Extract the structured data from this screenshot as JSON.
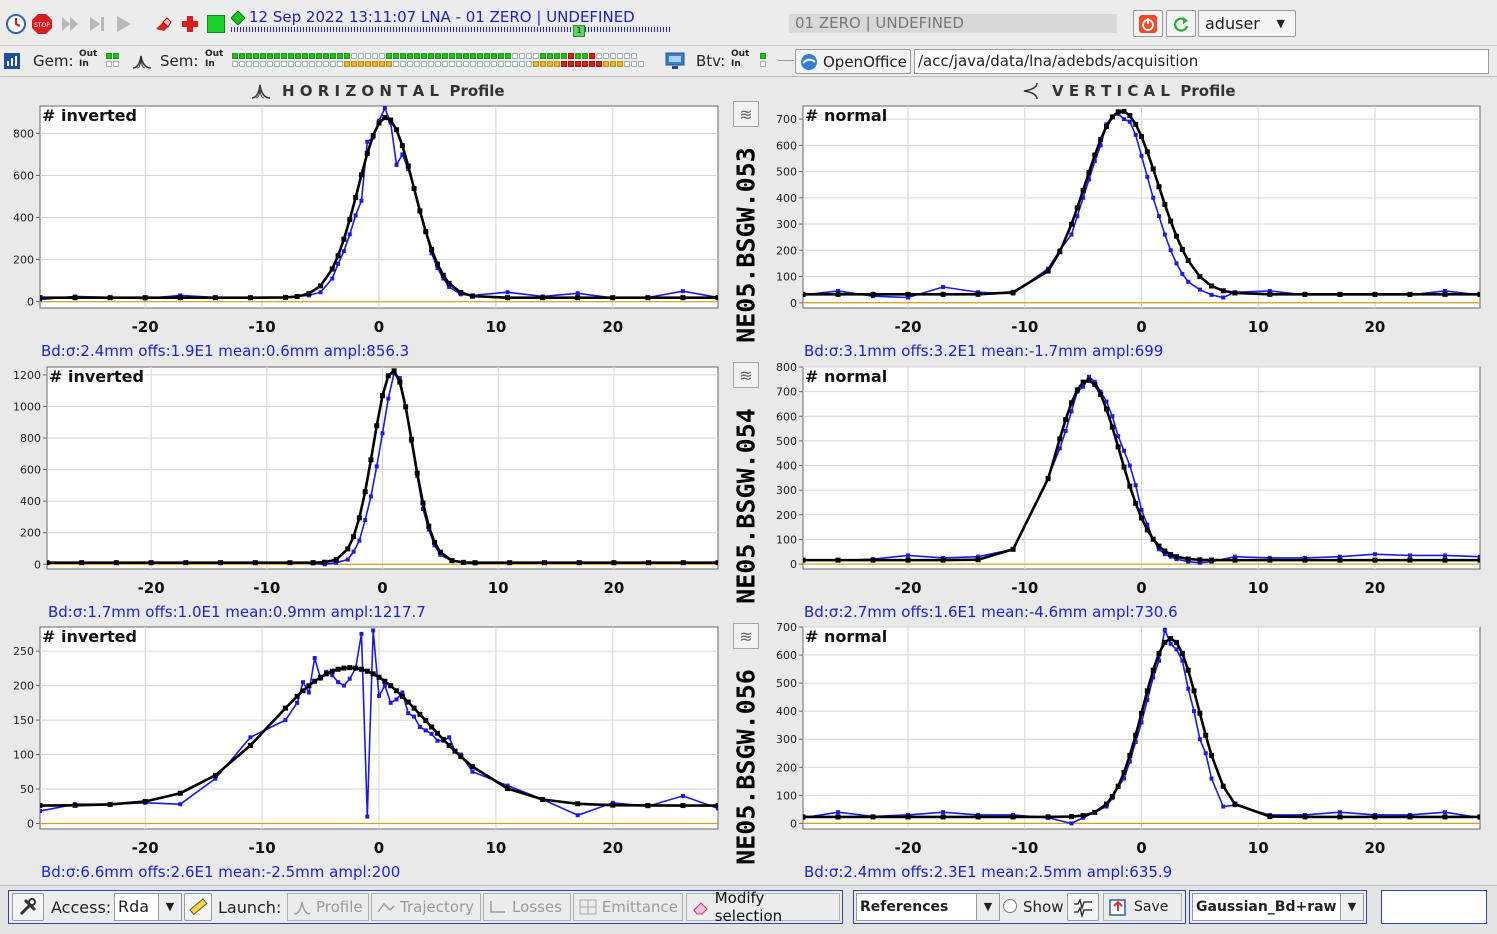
{
  "toolbar": {
    "timestamp": "12 Sep 2022  13:11:07  LNA - 01 ZERO | UNDEFINED",
    "user_cycle": "01 ZERO | UNDEFINED",
    "user": "aduser",
    "stop_label": "STOP",
    "marker": "1"
  },
  "status_bar": {
    "gem_label": "Gem:",
    "sem_label": "Sem:",
    "btv_label": "Btv:",
    "out": "Out",
    "in": "In",
    "openoffice": "OpenOffice",
    "path": "/acc/java/data/lna/adebds/acquisition",
    "gem_leds": {
      "out": [
        "g",
        "g"
      ],
      "in": [
        "w",
        "w"
      ]
    },
    "btv_leds": {
      "out": [
        "g"
      ],
      "in": [
        "w"
      ]
    },
    "sem_leds_out": "gggggggggggggggggwwwwwggggggggggggggggggwwwwggggrggrwwwwww",
    "sem_leds_in": "wwwwwwwwwwwwwwwwyyyyyyywwwwwwwwwwwwwwwwwwwwyyyyrrrrrryyywww"
  },
  "headers": {
    "horizontal": "H O R I Z O N T A L  Profile",
    "vertical": "V E R T I C A L  Profile"
  },
  "monitors": [
    {
      "name": "NE05.BSGW.053"
    },
    {
      "name": "NE05.BSGW.054"
    },
    {
      "name": "NE05.BSGW.056"
    }
  ],
  "bottom": {
    "access_label": "Access:",
    "access_value": "Rda",
    "launch_label": "Launch:",
    "profile": "Profile",
    "trajectory": "Trajectory",
    "losses": "Losses",
    "emittance": "Emittance",
    "modify": "Modify selection",
    "references": "References",
    "show": "Show",
    "save": "Save",
    "fit": "Gaussian_Bd+raw",
    "text_value": ""
  },
  "colors": {
    "raw": "#1a1ae6",
    "fit": "#000000",
    "baseline": "#d4a017",
    "label": "#1b24d6"
  },
  "chart_data": [
    {
      "type": "line",
      "plane": "horizontal",
      "monitor": "NE05.BSGW.053",
      "annotation": "# inverted",
      "xlim": [
        -29,
        29
      ],
      "ylim": [
        -30,
        930
      ],
      "xticks": [
        -20,
        -10,
        0,
        10,
        20
      ],
      "yticks": [
        0,
        200,
        400,
        600,
        800
      ],
      "stats": "Bd:σ:2.4mm offs:1.9E1 mean:0.6mm ampl:856.3",
      "sigma": 2.4,
      "offset": 19,
      "mean": 0.6,
      "ampl": 856.3,
      "series": [
        {
          "name": "raw",
          "x": [
            -29,
            -26,
            -23,
            -20,
            -17,
            -14,
            -11,
            -8,
            -7,
            -6,
            -5,
            -4,
            -3.5,
            -3,
            -2.5,
            -2,
            -1.5,
            -1,
            -0.5,
            0,
            0.5,
            1,
            1.5,
            2,
            2.5,
            3,
            3.5,
            4,
            4.5,
            5,
            5.5,
            6,
            7,
            8,
            11,
            14,
            17,
            20,
            23,
            26,
            29
          ],
          "y": [
            10,
            25,
            20,
            15,
            30,
            20,
            18,
            20,
            25,
            30,
            45,
            110,
            180,
            240,
            320,
            410,
            480,
            760,
            780,
            860,
            920,
            850,
            650,
            700,
            630,
            540,
            430,
            330,
            230,
            160,
            110,
            70,
            35,
            30,
            45,
            25,
            40,
            18,
            20,
            50,
            20
          ]
        }
      ]
    },
    {
      "type": "line",
      "plane": "vertical",
      "monitor": "NE05.BSGW.053",
      "annotation": "# normal",
      "xlim": [
        -29,
        29
      ],
      "ylim": [
        -20,
        750
      ],
      "xticks": [
        -20,
        -10,
        0,
        10,
        20
      ],
      "yticks": [
        0,
        100,
        200,
        300,
        400,
        500,
        600,
        700
      ],
      "stats": "Bd:σ:3.1mm offs:3.2E1 mean:-1.7mm ampl:699",
      "sigma": 3.1,
      "offset": 32,
      "mean": -1.7,
      "ampl": 699,
      "series": [
        {
          "name": "raw",
          "x": [
            -29,
            -26,
            -23,
            -20,
            -17,
            -14,
            -11,
            -8,
            -7,
            -6,
            -5.5,
            -5,
            -4.5,
            -4,
            -3.5,
            -3,
            -2.5,
            -2,
            -1.5,
            -1,
            -0.5,
            0,
            0.5,
            1,
            1.5,
            2,
            2.5,
            3,
            3.5,
            4,
            5,
            6,
            7,
            8,
            11,
            14,
            17,
            20,
            23,
            26,
            29
          ],
          "y": [
            30,
            45,
            25,
            20,
            60,
            40,
            35,
            130,
            200,
            260,
            330,
            400,
            470,
            540,
            600,
            680,
            710,
            720,
            700,
            690,
            640,
            560,
            480,
            400,
            330,
            260,
            200,
            150,
            110,
            80,
            50,
            30,
            20,
            40,
            45,
            30,
            30,
            30,
            30,
            45,
            30
          ]
        }
      ]
    },
    {
      "type": "line",
      "plane": "horizontal",
      "monitor": "NE05.BSGW.054",
      "annotation": "# inverted",
      "xlim": [
        -29,
        29
      ],
      "ylim": [
        -30,
        1250
      ],
      "xticks": [
        -20,
        -10,
        0,
        10,
        20
      ],
      "yticks": [
        0,
        200,
        400,
        600,
        800,
        1000,
        1200
      ],
      "stats": "Bd:σ:1.7mm offs:1.0E1 mean:0.9mm ampl:1217.7",
      "sigma": 1.7,
      "offset": 10,
      "mean": 0.9,
      "ampl": 1217.7,
      "series": [
        {
          "name": "raw",
          "x": [
            -29,
            -26,
            -23,
            -20,
            -17,
            -14,
            -11,
            -8,
            -6,
            -5,
            -4,
            -3,
            -2.5,
            -2,
            -1.5,
            -1,
            -0.5,
            0,
            0.5,
            1,
            1.5,
            2,
            2.5,
            3,
            3.5,
            4,
            4.5,
            5,
            6,
            7,
            8,
            11,
            14,
            17,
            20,
            23,
            26,
            29
          ],
          "y": [
            10,
            8,
            8,
            10,
            10,
            10,
            12,
            10,
            5,
            0,
            10,
            30,
            80,
            150,
            280,
            430,
            620,
            830,
            1050,
            1210,
            1180,
            1000,
            780,
            560,
            350,
            220,
            120,
            60,
            20,
            10,
            5,
            10,
            8,
            8,
            10,
            10,
            10,
            8
          ]
        }
      ]
    },
    {
      "type": "line",
      "plane": "vertical",
      "monitor": "NE05.BSGW.054",
      "annotation": "# normal",
      "xlim": [
        -29,
        29
      ],
      "ylim": [
        -20,
        800
      ],
      "xticks": [
        -20,
        -10,
        0,
        10,
        20
      ],
      "yticks": [
        0,
        100,
        200,
        300,
        400,
        500,
        600,
        700,
        800
      ],
      "stats": "Bd:σ:2.7mm offs:1.6E1 mean:-4.6mm ampl:730.6",
      "sigma": 2.7,
      "offset": 16,
      "mean": -4.6,
      "ampl": 730.6,
      "series": [
        {
          "name": "raw",
          "x": [
            -29,
            -26,
            -23,
            -20,
            -17,
            -14,
            -11,
            -8,
            -7,
            -6.5,
            -6,
            -5.5,
            -5,
            -4.5,
            -4,
            -3.5,
            -3,
            -2.5,
            -2,
            -1.5,
            -1,
            -0.5,
            0,
            0.5,
            1,
            1.5,
            2,
            2.5,
            3,
            4,
            5,
            6,
            8,
            11,
            14,
            17,
            20,
            23,
            26,
            29
          ],
          "y": [
            15,
            15,
            20,
            35,
            25,
            30,
            60,
            350,
            470,
            540,
            620,
            700,
            720,
            760,
            740,
            700,
            660,
            600,
            520,
            460,
            400,
            320,
            220,
            160,
            100,
            60,
            40,
            30,
            20,
            10,
            5,
            10,
            30,
            25,
            25,
            30,
            40,
            35,
            35,
            30
          ]
        }
      ]
    },
    {
      "type": "line",
      "plane": "horizontal",
      "monitor": "NE05.BSGW.056",
      "annotation": "# inverted",
      "xlim": [
        -29,
        29
      ],
      "ylim": [
        -8,
        285
      ],
      "xticks": [
        -20,
        -10,
        0,
        10,
        20
      ],
      "yticks": [
        0,
        50,
        100,
        150,
        200,
        250
      ],
      "stats": "Bd:σ:6.6mm offs:2.6E1 mean:-2.5mm ampl:200",
      "sigma": 6.6,
      "offset": 26,
      "mean": -2.5,
      "ampl": 200,
      "series": [
        {
          "name": "raw",
          "x": [
            -29,
            -26,
            -23,
            -20,
            -17,
            -14,
            -11,
            -8,
            -7,
            -6.5,
            -6,
            -5.5,
            -5,
            -4.5,
            -4,
            -3.5,
            -3,
            -2.5,
            -2,
            -1.5,
            -1,
            -0.5,
            0,
            0.5,
            1,
            1.5,
            2,
            2.5,
            3,
            3.5,
            4,
            4.5,
            5,
            5.5,
            6,
            6.5,
            7,
            8,
            11,
            14,
            17,
            20,
            23,
            26,
            29
          ],
          "y": [
            18,
            28,
            28,
            30,
            28,
            65,
            125,
            150,
            175,
            205,
            190,
            240,
            210,
            220,
            215,
            205,
            200,
            210,
            225,
            275,
            10,
            280,
            185,
            200,
            175,
            180,
            190,
            160,
            155,
            140,
            135,
            130,
            120,
            120,
            125,
            105,
            100,
            75,
            55,
            35,
            12,
            30,
            25,
            40,
            22
          ]
        }
      ]
    },
    {
      "type": "line",
      "plane": "vertical",
      "monitor": "NE05.BSGW.056",
      "annotation": "# normal",
      "xlim": [
        -29,
        29
      ],
      "ylim": [
        -20,
        700
      ],
      "xticks": [
        -20,
        -10,
        0,
        10,
        20
      ],
      "yticks": [
        0,
        100,
        200,
        300,
        400,
        500,
        600,
        700
      ],
      "stats": "Bd:σ:2.4mm offs:2.3E1 mean:2.5mm ampl:635.9",
      "sigma": 2.4,
      "offset": 23,
      "mean": 2.5,
      "ampl": 635.9,
      "series": [
        {
          "name": "raw",
          "x": [
            -29,
            -26,
            -23,
            -20,
            -17,
            -14,
            -11,
            -8,
            -6,
            -5,
            -4,
            -3,
            -2.5,
            -2,
            -1.5,
            -1,
            -0.5,
            0,
            0.5,
            1,
            1.5,
            2,
            2.5,
            3,
            3.5,
            4,
            4.5,
            5,
            5.5,
            6,
            7,
            8,
            11,
            14,
            17,
            20,
            23,
            26,
            29
          ],
          "y": [
            20,
            40,
            25,
            30,
            40,
            30,
            30,
            20,
            0,
            20,
            40,
            60,
            90,
            130,
            160,
            220,
            290,
            360,
            440,
            520,
            580,
            690,
            640,
            620,
            580,
            480,
            400,
            300,
            250,
            160,
            60,
            65,
            30,
            30,
            40,
            30,
            30,
            40,
            20
          ]
        }
      ]
    }
  ]
}
